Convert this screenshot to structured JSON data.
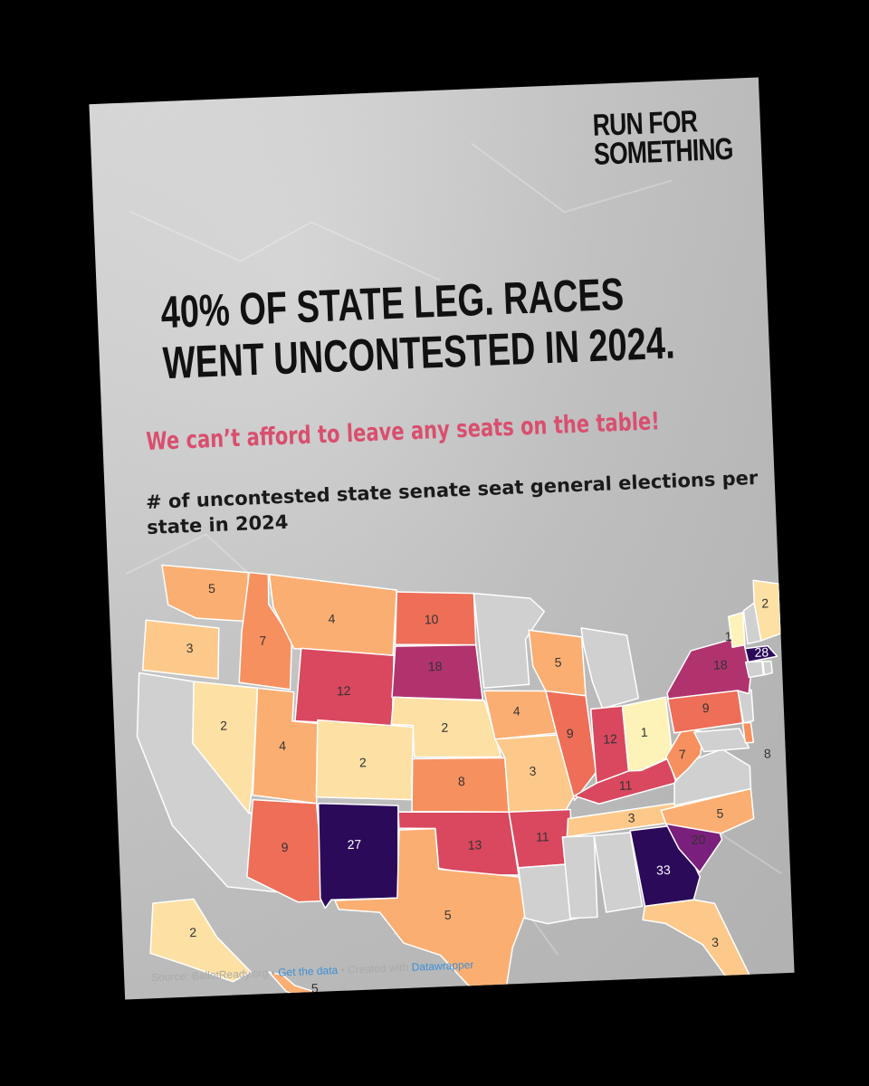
{
  "brand": {
    "line1": "RUN FOR",
    "line2": "SOMETHING"
  },
  "headline": {
    "line1": "40% OF STATE LEG. RACES",
    "line2": "WENT UNCONTESTED IN 2024."
  },
  "subhead": "We can’t afford to leave any seats on the table!",
  "map_title": "# of uncontested state senate seat general elections per state in 2024",
  "footer": {
    "source": "Source: BallotReady.org",
    "sep1": " • ",
    "get_data": "Get the data",
    "sep2": " • ",
    "created": "Created with ",
    "tool": "Datawrapper"
  },
  "colors": {
    "no_data": "#d0d0d0",
    "scale": [
      "#fdf3b8",
      "#fde0a4",
      "#fdc98a",
      "#fbae72",
      "#f7905f",
      "#ee6e58",
      "#d9485e",
      "#b0336e",
      "#7a1f7b",
      "#2c0a5a"
    ]
  },
  "chart_data": {
    "type": "choropleth",
    "region": "United States",
    "values": [
      {
        "state": "WA",
        "value": 5
      },
      {
        "state": "OR",
        "value": 3
      },
      {
        "state": "ID",
        "value": 7
      },
      {
        "state": "MT",
        "value": 4
      },
      {
        "state": "ND",
        "value": 10
      },
      {
        "state": "SD",
        "value": 18
      },
      {
        "state": "WY",
        "value": 12
      },
      {
        "state": "NV",
        "value": 2
      },
      {
        "state": "UT",
        "value": 4
      },
      {
        "state": "CO",
        "value": 2
      },
      {
        "state": "NE",
        "value": 2
      },
      {
        "state": "KS",
        "value": 8
      },
      {
        "state": "AZ",
        "value": 9
      },
      {
        "state": "NM",
        "value": 27
      },
      {
        "state": "OK",
        "value": 13
      },
      {
        "state": "TX",
        "value": 5
      },
      {
        "state": "IA",
        "value": 4
      },
      {
        "state": "MO",
        "value": 3
      },
      {
        "state": "AR",
        "value": 11
      },
      {
        "state": "WI",
        "value": 5
      },
      {
        "state": "IL",
        "value": 9
      },
      {
        "state": "IN",
        "value": 12
      },
      {
        "state": "KY",
        "value": 11
      },
      {
        "state": "OH",
        "value": 1
      },
      {
        "state": "WV",
        "value": 7
      },
      {
        "state": "TN",
        "value": 3
      },
      {
        "state": "NC",
        "value": 5
      },
      {
        "state": "SC",
        "value": 20
      },
      {
        "state": "GA",
        "value": 33
      },
      {
        "state": "FL",
        "value": 3
      },
      {
        "state": "PA",
        "value": 9
      },
      {
        "state": "NY",
        "value": 18
      },
      {
        "state": "ME",
        "value": 2
      },
      {
        "state": "VT",
        "value": 1
      },
      {
        "state": "MA",
        "value": 28
      },
      {
        "state": "DE",
        "value": 8
      },
      {
        "state": "AK",
        "value": 2
      },
      {
        "state": "HI",
        "value": 5
      }
    ],
    "no_data_states": [
      "CA",
      "MN",
      "MI",
      "LA",
      "MS",
      "AL",
      "VA",
      "MD",
      "NJ",
      "CT",
      "RI",
      "NH"
    ]
  }
}
